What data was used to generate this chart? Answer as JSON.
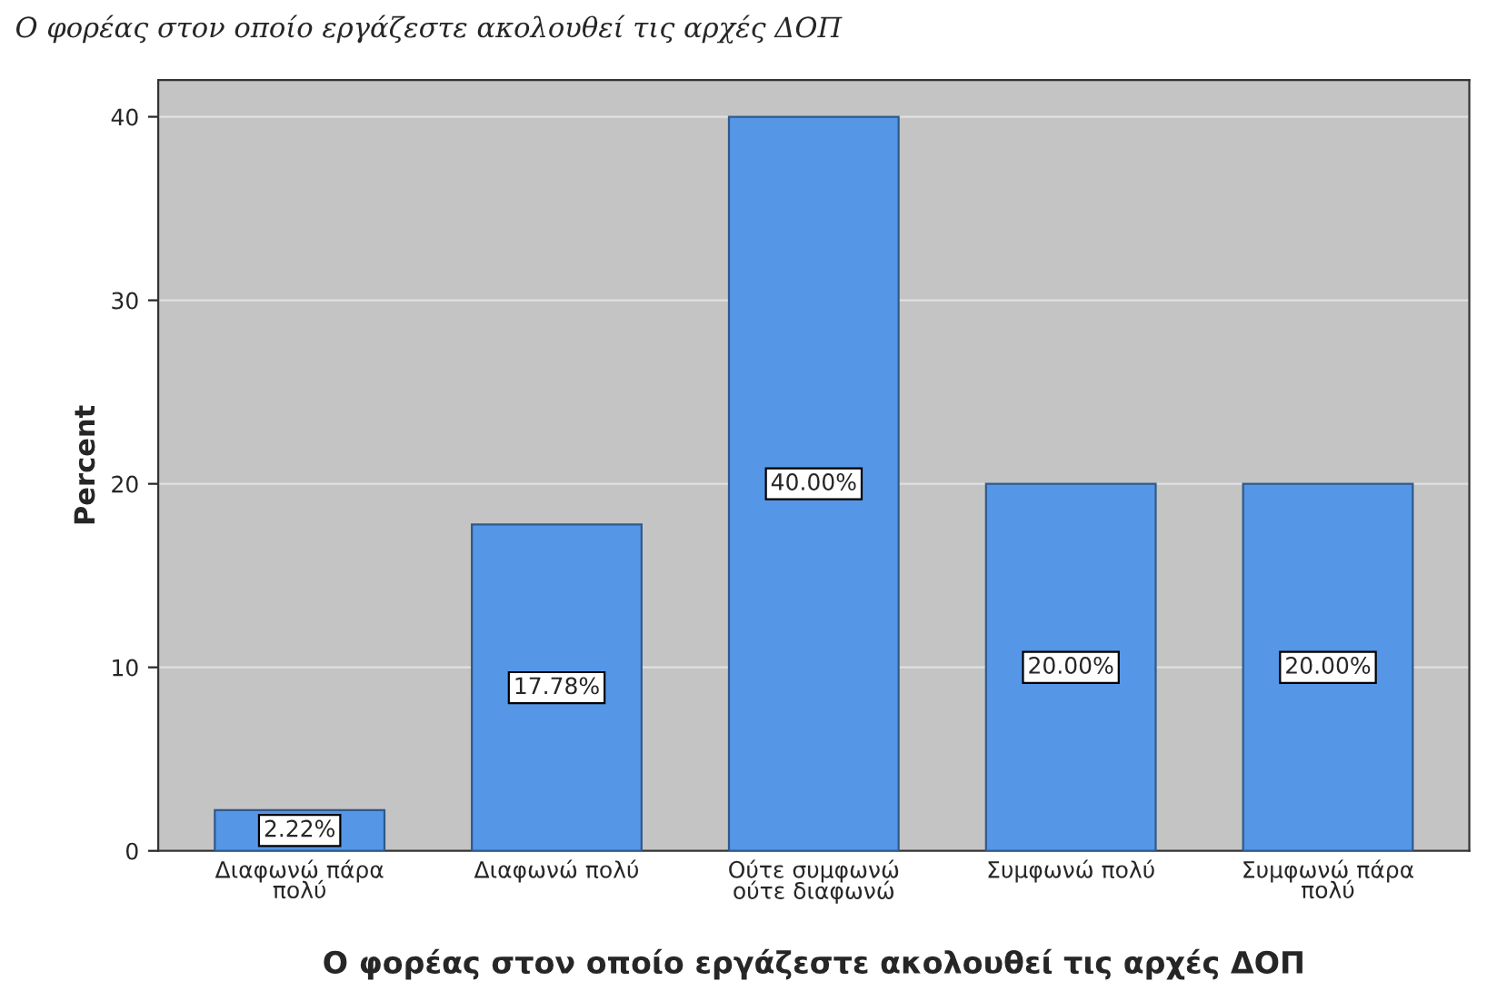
{
  "chart_data": {
    "type": "bar",
    "title": "Ο φορέας στον οποίο εργάζεστε ακολουθεί τις αρχές ΔΟΠ",
    "xlabel": "Ο φορέας στον οποίο εργάζεστε ακολουθεί τις αρχές ΔΟΠ",
    "ylabel": "Percent",
    "categories": [
      "Διαφωνώ πάρα\nπολύ",
      "Διαφωνώ πολύ",
      "Ούτε συμφωνώ\nούτε διαφωνώ",
      "Συμφωνώ πολύ",
      "Συμφωνώ πάρα\nπολύ"
    ],
    "values": [
      2.22,
      17.78,
      40.0,
      20.0,
      20.0
    ],
    "value_labels": [
      "2.22%",
      "17.78%",
      "40.00%",
      "20.00%",
      "20.00%"
    ],
    "color": "#5596e6",
    "ylim": [
      0,
      42
    ],
    "yticks": [
      0,
      10,
      20,
      30,
      40
    ],
    "grid": "y"
  }
}
